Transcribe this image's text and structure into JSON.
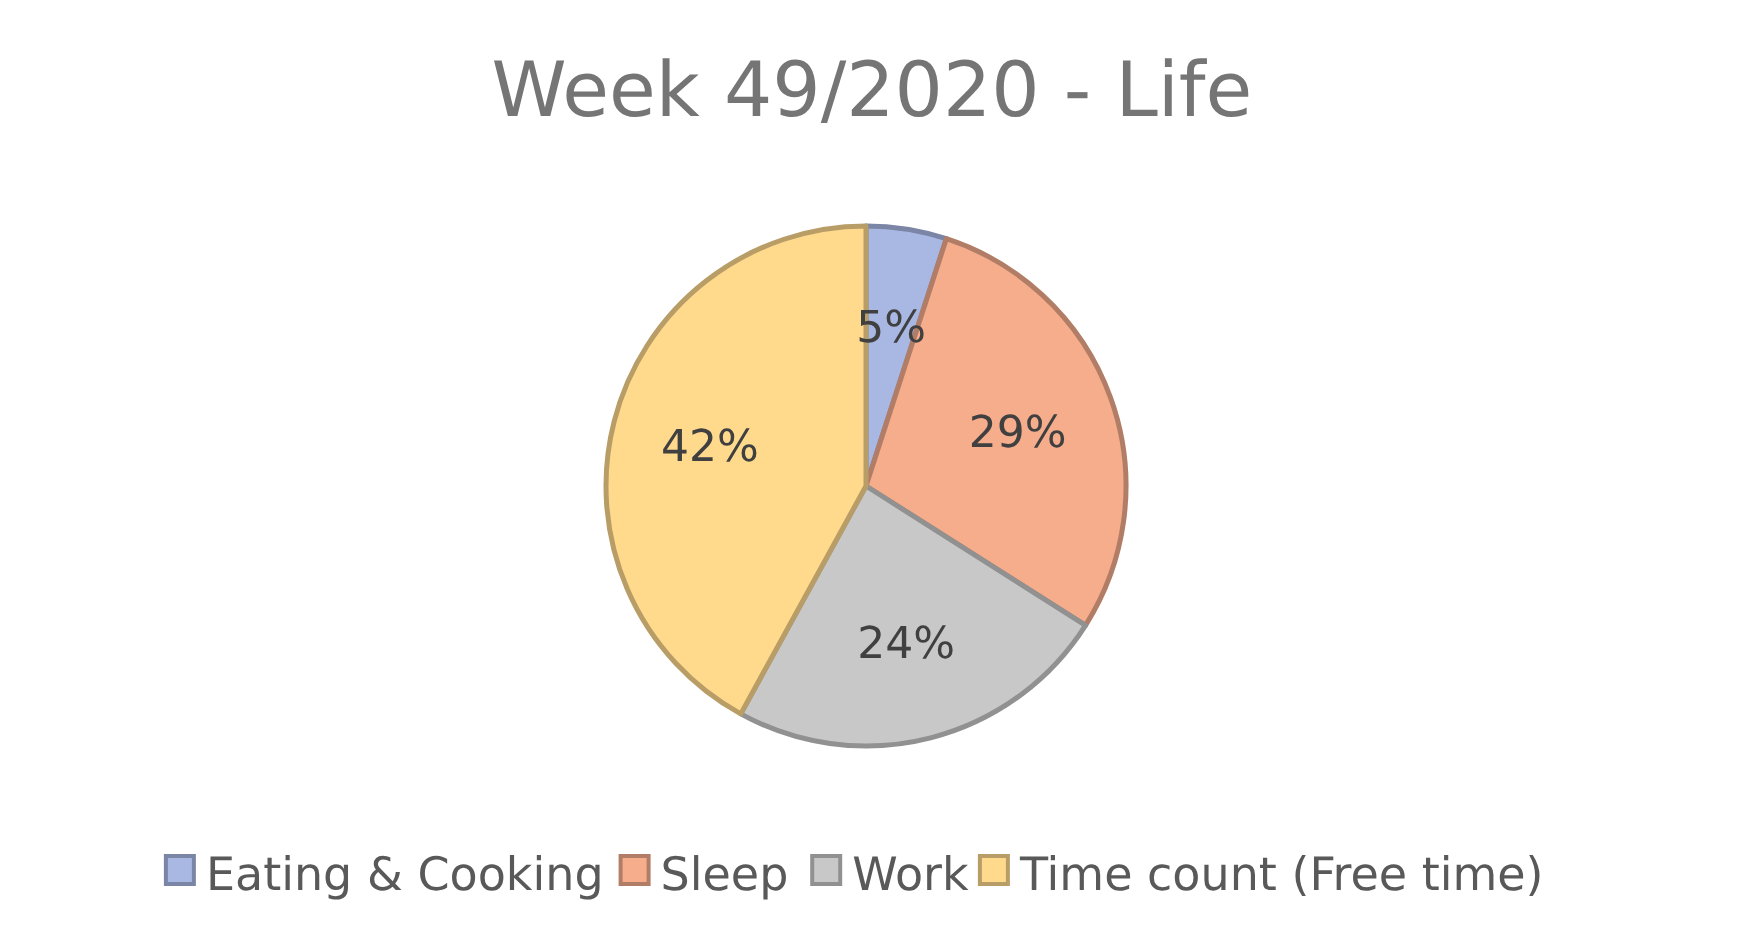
{
  "chart_data": {
    "type": "pie",
    "title": "Week 49/2020  - Life",
    "categories": [
      "Eating & Cooking",
      "Sleep",
      "Work",
      "Time count (Free time)"
    ],
    "values": [
      5,
      29,
      24,
      42
    ],
    "colors": [
      "#a9b7e3",
      "#f5ad8c",
      "#c8c8c8",
      "#ffd98c"
    ],
    "value_labels": [
      "5%",
      "29%",
      "24%",
      "42%"
    ],
    "legend": "bottom"
  }
}
